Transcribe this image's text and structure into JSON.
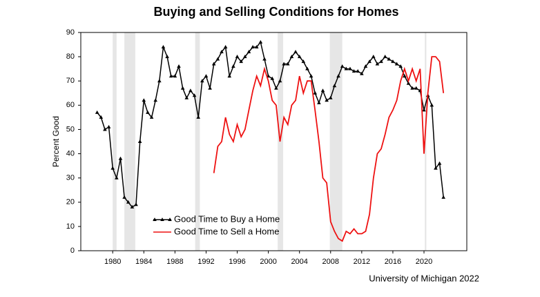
{
  "chart_data": {
    "type": "line",
    "title": "Buying and Selling Conditions for Homes",
    "y_label": "Percent Good",
    "source": "University of Michigan 2022",
    "legend": "lower left",
    "grid": false,
    "xlim": [
      1975.9,
      2025.5
    ],
    "xticks": [
      1980,
      1984,
      1988,
      1992,
      1996,
      2000,
      2004,
      2008,
      2012,
      2016,
      2020
    ],
    "ylim": [
      0,
      90
    ],
    "yticks": [
      0,
      10,
      20,
      30,
      40,
      50,
      60,
      70,
      80,
      90
    ],
    "shaded_periods": [
      [
        1980.0,
        1980.5
      ],
      [
        1981.5,
        1982.9
      ],
      [
        1990.6,
        1991.2
      ],
      [
        2001.2,
        2001.9
      ],
      [
        2007.9,
        2009.5
      ],
      [
        2020.1,
        2020.3
      ]
    ],
    "shade_color": "#e6e6e6",
    "x": [
      1978,
      1978.5,
      1979,
      1979.5,
      1980,
      1980.5,
      1981,
      1981.5,
      1982,
      1982.5,
      1983,
      1983.5,
      1984,
      1984.5,
      1985,
      1985.5,
      1986,
      1986.5,
      1987,
      1987.5,
      1988,
      1988.5,
      1989,
      1989.5,
      1990,
      1990.5,
      1991,
      1991.5,
      1992,
      1992.5,
      1993,
      1993.5,
      1994,
      1994.5,
      1995,
      1995.5,
      1996,
      1996.5,
      1997,
      1997.5,
      1998,
      1998.5,
      1999,
      1999.5,
      2000,
      2000.5,
      2001,
      2001.5,
      2002,
      2002.5,
      2003,
      2003.5,
      2004,
      2004.5,
      2005,
      2005.5,
      2006,
      2006.5,
      2007,
      2007.5,
      2008,
      2008.5,
      2009,
      2009.5,
      2010,
      2010.5,
      2011,
      2011.5,
      2012,
      2012.5,
      2013,
      2013.5,
      2014,
      2014.5,
      2015,
      2015.5,
      2016,
      2016.5,
      2017,
      2017.5,
      2018,
      2018.5,
      2019,
      2019.5,
      2020,
      2020.5,
      2021,
      2021.5,
      2022,
      2022.5
    ],
    "series": [
      {
        "name": "Good Time to Buy a Home",
        "color": "#000000",
        "markers": true,
        "values": [
          57,
          55,
          50,
          51,
          34,
          30,
          38,
          22,
          20,
          18,
          19,
          45,
          62,
          57,
          55,
          62,
          70,
          84,
          80,
          72,
          72,
          76,
          67,
          63,
          66,
          64,
          55,
          70,
          72,
          67,
          77,
          79,
          82,
          84,
          72,
          76,
          80,
          78,
          80,
          82,
          84,
          84,
          86,
          79,
          72,
          71,
          67,
          70,
          77,
          77,
          80,
          82,
          80,
          78,
          75,
          72,
          65,
          61,
          66,
          62,
          63,
          68,
          72,
          76,
          75,
          75,
          74,
          74,
          73,
          76,
          78,
          80,
          77,
          78,
          80,
          79,
          78,
          77,
          76,
          72,
          69,
          67,
          67,
          66,
          58,
          64,
          60,
          34,
          36,
          22
        ]
      },
      {
        "name": "Good Time to Sell a Home",
        "color": "#ee1111",
        "markers": false,
        "values": [
          null,
          null,
          null,
          null,
          null,
          null,
          null,
          null,
          null,
          null,
          null,
          null,
          null,
          null,
          null,
          null,
          null,
          null,
          null,
          null,
          null,
          null,
          null,
          null,
          null,
          null,
          null,
          null,
          null,
          null,
          32,
          43,
          45,
          55,
          48,
          45,
          52,
          47,
          50,
          58,
          66,
          72,
          68,
          75,
          70,
          62,
          60,
          45,
          55,
          52,
          60,
          62,
          72,
          65,
          70,
          70,
          58,
          45,
          30,
          28,
          12,
          8,
          5,
          4,
          8,
          7,
          9,
          7,
          7,
          8,
          15,
          30,
          40,
          42,
          48,
          55,
          58,
          62,
          70,
          75,
          70,
          75,
          70,
          75,
          40,
          65,
          80,
          80,
          78,
          65
        ]
      }
    ]
  }
}
